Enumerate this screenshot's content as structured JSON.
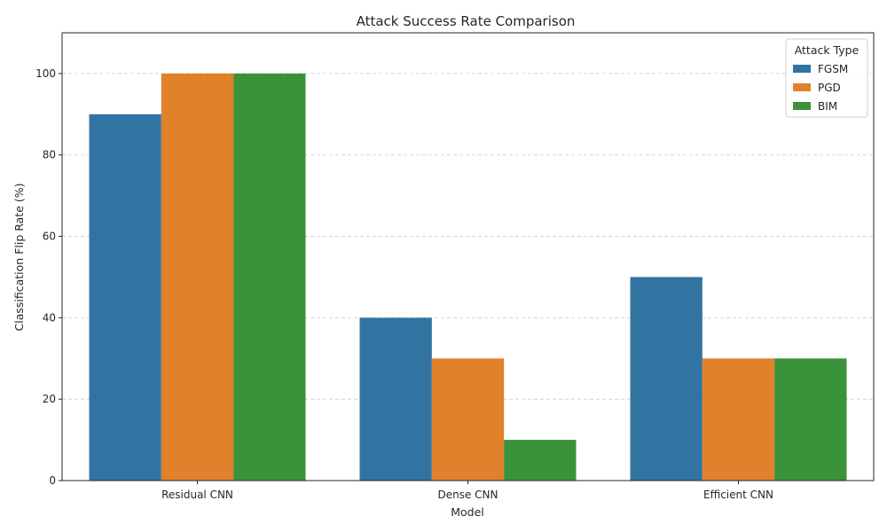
{
  "chart_data": {
    "type": "bar",
    "title": "Attack Success Rate Comparison",
    "xlabel": "Model",
    "ylabel": "Classification Flip Rate (%)",
    "categories": [
      "Residual CNN",
      "Dense CNN",
      "Efficient CNN"
    ],
    "series": [
      {
        "name": "FGSM",
        "values": [
          90,
          40,
          50
        ],
        "color": "#3274a1"
      },
      {
        "name": "PGD",
        "values": [
          100,
          30,
          30
        ],
        "color": "#e1812c"
      },
      {
        "name": "BIM",
        "values": [
          100,
          10,
          30
        ],
        "color": "#3a923a"
      }
    ],
    "ylim": [
      0,
      110
    ],
    "yticks": [
      0,
      20,
      40,
      60,
      80,
      100
    ],
    "grid": "y-dashed",
    "legend": {
      "title": "Attack Type",
      "position": "top-right"
    }
  }
}
